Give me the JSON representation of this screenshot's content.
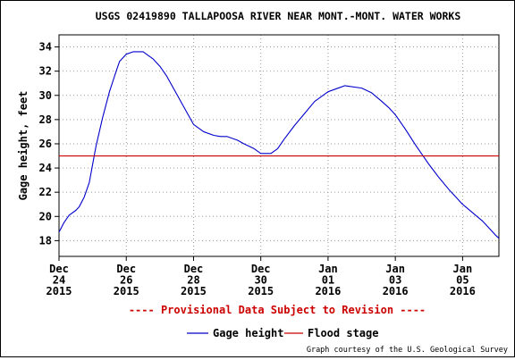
{
  "chart_data": {
    "type": "line",
    "title": "USGS 02419890 TALLAPOOSA RIVER NEAR MONT.-MONT. WATER WORKS",
    "ylabel": "Gage height, feet",
    "xlabel": "",
    "ylim": [
      16.7,
      35.0
    ],
    "xlim": [
      0,
      13.08
    ],
    "y_ticks": [
      18,
      20,
      22,
      24,
      26,
      28,
      30,
      32,
      34
    ],
    "x_ticks": [
      {
        "x": 0,
        "lines": [
          "Dec",
          "24",
          "2015"
        ]
      },
      {
        "x": 2,
        "lines": [
          "Dec",
          "26",
          "2015"
        ]
      },
      {
        "x": 4,
        "lines": [
          "Dec",
          "28",
          "2015"
        ]
      },
      {
        "x": 6,
        "lines": [
          "Dec",
          "30",
          "2015"
        ]
      },
      {
        "x": 8,
        "lines": [
          "Jan",
          "01",
          "2016"
        ]
      },
      {
        "x": 10,
        "lines": [
          "Jan",
          "03",
          "2016"
        ]
      },
      {
        "x": 12,
        "lines": [
          "Jan",
          "05",
          "2016"
        ]
      }
    ],
    "grid": "dotted",
    "series": [
      {
        "name": "Gage height",
        "color": "#0000cc",
        "x": [
          0,
          0.15,
          0.3,
          0.5,
          0.6,
          0.75,
          0.9,
          1.0,
          1.1,
          1.2,
          1.3,
          1.5,
          1.7,
          1.8,
          2.0,
          2.2,
          2.5,
          2.8,
          3.0,
          3.2,
          3.5,
          3.8,
          4.0,
          4.3,
          4.6,
          4.8,
          5.0,
          5.3,
          5.5,
          5.8,
          6.0,
          6.3,
          6.5,
          6.7,
          7.0,
          7.3,
          7.6,
          8.0,
          8.5,
          9.0,
          9.3,
          9.6,
          9.8,
          10.0,
          10.3,
          10.6,
          11.0,
          11.3,
          11.6,
          12.0,
          12.3,
          12.6,
          12.8,
          13.0,
          13.08
        ],
        "values": [
          18.7,
          19.5,
          20.1,
          20.5,
          20.8,
          21.6,
          22.8,
          24.3,
          25.8,
          27.0,
          28.2,
          30.3,
          32.0,
          32.8,
          33.4,
          33.6,
          33.6,
          33.0,
          32.4,
          31.6,
          30.1,
          28.6,
          27.6,
          27.0,
          26.7,
          26.6,
          26.6,
          26.3,
          26.0,
          25.6,
          25.2,
          25.2,
          25.6,
          26.4,
          27.5,
          28.5,
          29.5,
          30.3,
          30.8,
          30.6,
          30.2,
          29.5,
          29.0,
          28.4,
          27.2,
          25.9,
          24.3,
          23.2,
          22.2,
          21.0,
          20.3,
          19.6,
          19.0,
          18.4,
          18.2
        ]
      },
      {
        "name": "Flood stage",
        "color": "#cc0000",
        "x": [
          0,
          13.08
        ],
        "values": [
          25.0,
          25.0
        ]
      }
    ],
    "annotation": "---- Provisional Data Subject to Revision ----",
    "legend_position": "bottom",
    "credit": "Graph courtesy of the U.S. Geological Survey"
  },
  "colors": {
    "provisional": "#cc0000",
    "axis": "#000000",
    "grid": "#999999"
  }
}
